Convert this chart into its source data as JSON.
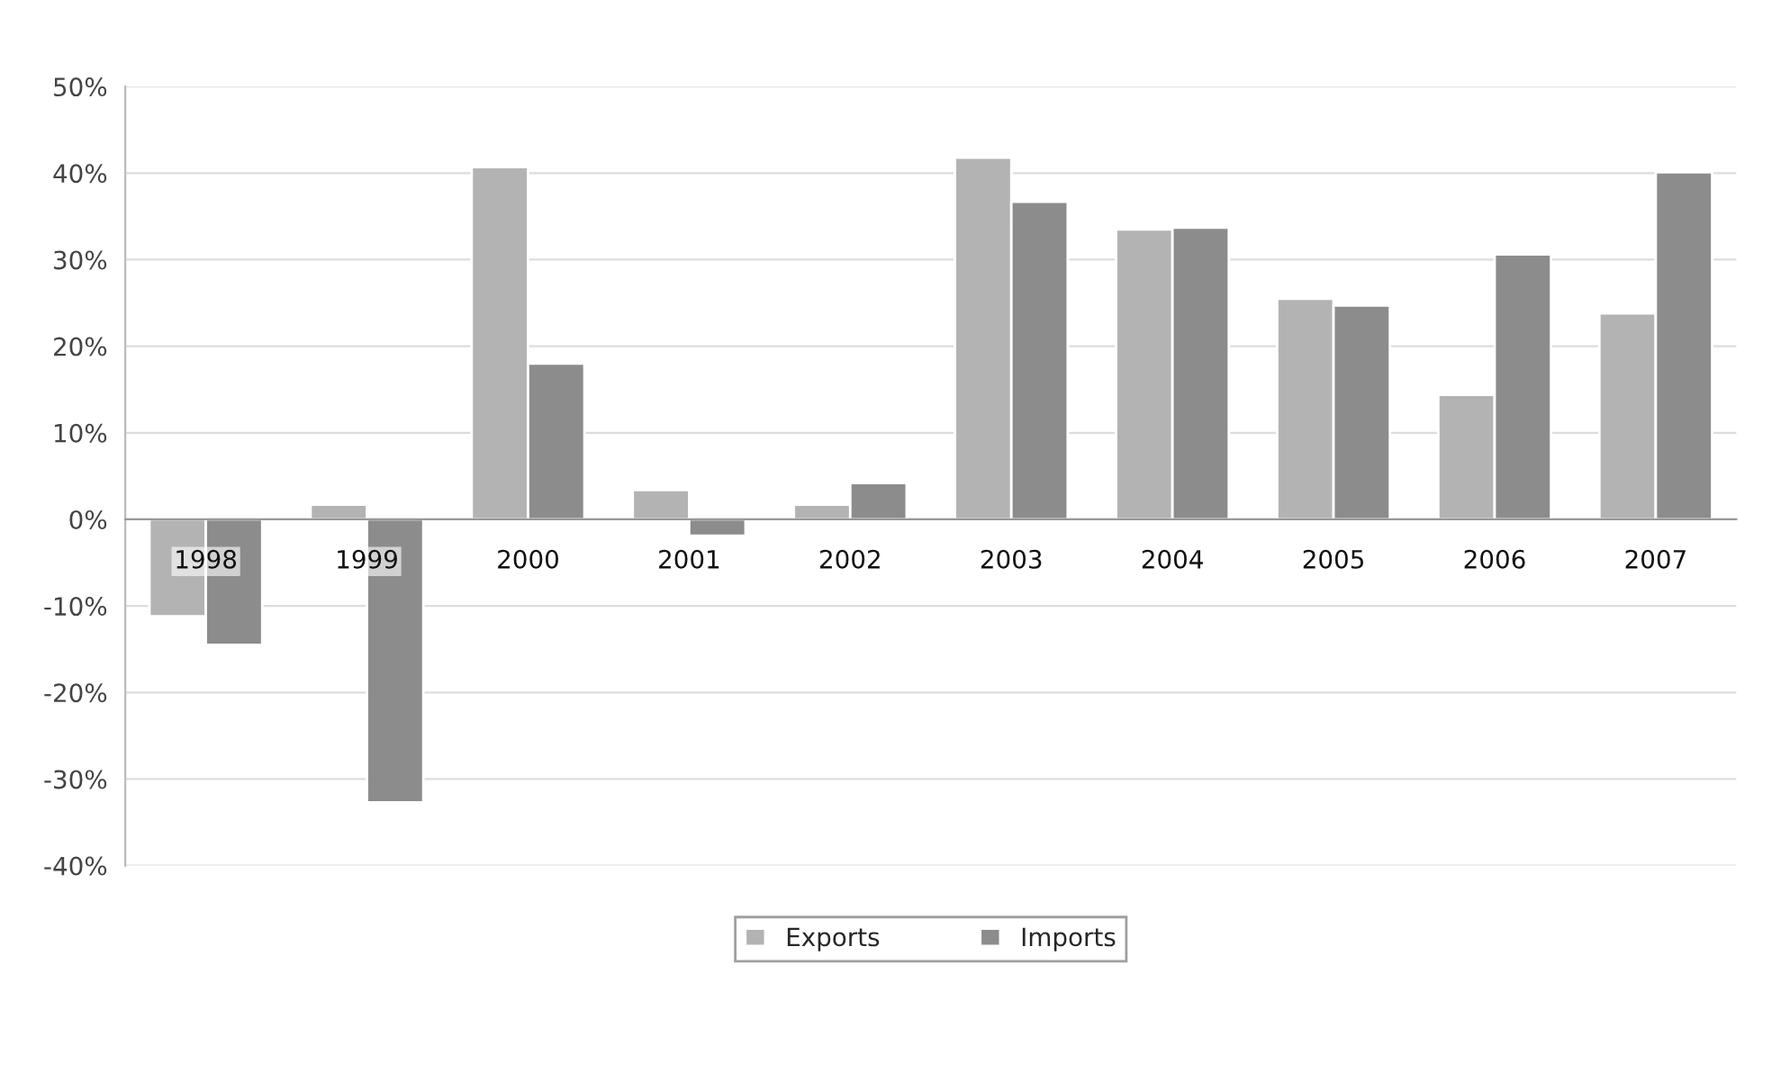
{
  "chart_data": {
    "type": "bar",
    "categories": [
      "1998",
      "1999",
      "2000",
      "2001",
      "2002",
      "2003",
      "2004",
      "2005",
      "2006",
      "2007"
    ],
    "series": [
      {
        "name": "Exports",
        "color": "#b3b3b3",
        "values": [
          -11.2,
          1.7,
          40.7,
          3.4,
          1.7,
          41.8,
          33.5,
          25.5,
          14.4,
          23.8
        ]
      },
      {
        "name": "Imports",
        "color": "#8c8c8c",
        "values": [
          -14.5,
          -32.7,
          18.0,
          -1.9,
          4.2,
          36.7,
          33.7,
          24.7,
          30.6,
          40.1
        ]
      }
    ],
    "ylim": [
      -40,
      50
    ],
    "yticks": [
      {
        "value": -40,
        "label": "-40%"
      },
      {
        "value": -30,
        "label": "-30%"
      },
      {
        "value": -20,
        "label": "-20%"
      },
      {
        "value": -10,
        "label": "-10%"
      },
      {
        "value": 0,
        "label": "0%"
      },
      {
        "value": 10,
        "label": "10%"
      },
      {
        "value": 20,
        "label": "20%"
      },
      {
        "value": 30,
        "label": "30%"
      },
      {
        "value": 40,
        "label": "40%"
      },
      {
        "value": 50,
        "label": "50%"
      }
    ],
    "grid": "y",
    "legend": "bottom"
  }
}
